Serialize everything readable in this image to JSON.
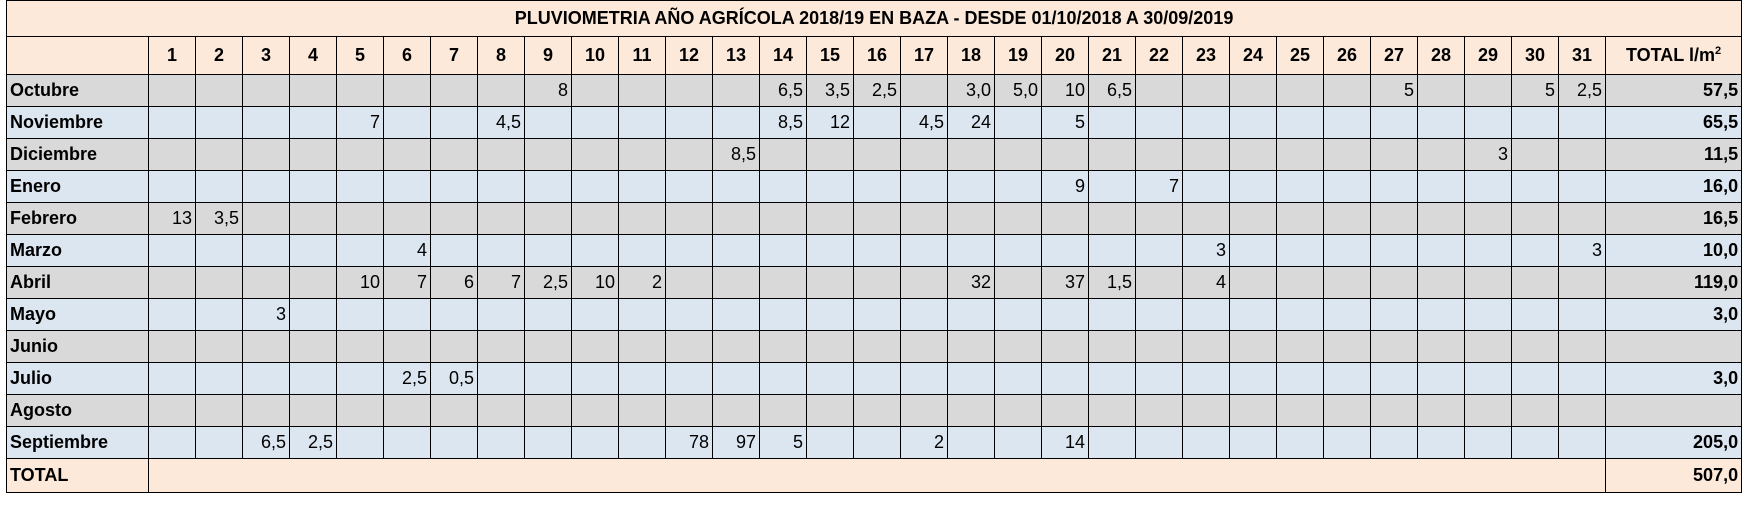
{
  "header": {
    "title": "PLUVIOMETRIA AÑO AGRÍCOLA  2018/19 EN BAZA - DESDE  01/10/2018  A 30/09/2019",
    "days": [
      1,
      2,
      3,
      4,
      5,
      6,
      7,
      8,
      9,
      10,
      11,
      12,
      13,
      14,
      15,
      16,
      17,
      18,
      19,
      20,
      21,
      22,
      23,
      24,
      25,
      26,
      27,
      28,
      29,
      30,
      31
    ],
    "total_label": "TOTAL l/m",
    "total_label_sup": "2"
  },
  "table": {
    "rows": [
      {
        "month": "Octubre",
        "values": [
          null,
          null,
          null,
          null,
          null,
          null,
          null,
          null,
          "8",
          null,
          null,
          null,
          null,
          "6,5",
          "3,5",
          "2,5",
          null,
          "3,0",
          "5,0",
          "10",
          "6,5",
          null,
          null,
          null,
          null,
          null,
          "5",
          null,
          null,
          "5",
          "2,5"
        ],
        "total": "57,5"
      },
      {
        "month": "Noviembre",
        "values": [
          null,
          null,
          null,
          null,
          "7",
          null,
          null,
          "4,5",
          null,
          null,
          null,
          null,
          null,
          "8,5",
          "12",
          null,
          "4,5",
          "24",
          null,
          "5",
          null,
          null,
          null,
          null,
          null,
          null,
          null,
          null,
          null,
          null,
          null
        ],
        "total": "65,5"
      },
      {
        "month": "Diciembre",
        "values": [
          null,
          null,
          null,
          null,
          null,
          null,
          null,
          null,
          null,
          null,
          null,
          null,
          "8,5",
          null,
          null,
          null,
          null,
          null,
          null,
          null,
          null,
          null,
          null,
          null,
          null,
          null,
          null,
          null,
          "3",
          null,
          null
        ],
        "total": "11,5"
      },
      {
        "month": "Enero",
        "values": [
          null,
          null,
          null,
          null,
          null,
          null,
          null,
          null,
          null,
          null,
          null,
          null,
          null,
          null,
          null,
          null,
          null,
          null,
          null,
          "9",
          null,
          "7",
          null,
          null,
          null,
          null,
          null,
          null,
          null,
          null,
          null
        ],
        "total": "16,0"
      },
      {
        "month": "Febrero",
        "values": [
          "13",
          "3,5",
          null,
          null,
          null,
          null,
          null,
          null,
          null,
          null,
          null,
          null,
          null,
          null,
          null,
          null,
          null,
          null,
          null,
          null,
          null,
          null,
          null,
          null,
          null,
          null,
          null,
          null,
          null,
          null,
          null
        ],
        "total": "16,5"
      },
      {
        "month": "Marzo",
        "values": [
          null,
          null,
          null,
          null,
          null,
          "4",
          null,
          null,
          null,
          null,
          null,
          null,
          null,
          null,
          null,
          null,
          null,
          null,
          null,
          null,
          null,
          null,
          "3",
          null,
          null,
          null,
          null,
          null,
          null,
          null,
          "3"
        ],
        "total": "10,0"
      },
      {
        "month": "Abril",
        "values": [
          null,
          null,
          null,
          null,
          "10",
          "7",
          "6",
          "7",
          "2,5",
          "10",
          "2",
          null,
          null,
          null,
          null,
          null,
          null,
          "32",
          null,
          "37",
          "1,5",
          null,
          "4",
          null,
          null,
          null,
          null,
          null,
          null,
          null,
          null
        ],
        "total": "119,0"
      },
      {
        "month": "Mayo",
        "values": [
          null,
          null,
          "3",
          null,
          null,
          null,
          null,
          null,
          null,
          null,
          null,
          null,
          null,
          null,
          null,
          null,
          null,
          null,
          null,
          null,
          null,
          null,
          null,
          null,
          null,
          null,
          null,
          null,
          null,
          null,
          null
        ],
        "total": "3,0"
      },
      {
        "month": "Junio",
        "values": [
          null,
          null,
          null,
          null,
          null,
          null,
          null,
          null,
          null,
          null,
          null,
          null,
          null,
          null,
          null,
          null,
          null,
          null,
          null,
          null,
          null,
          null,
          null,
          null,
          null,
          null,
          null,
          null,
          null,
          null,
          null
        ],
        "total": null
      },
      {
        "month": "Julio",
        "values": [
          null,
          null,
          null,
          null,
          null,
          "2,5",
          "0,5",
          null,
          null,
          null,
          null,
          null,
          null,
          null,
          null,
          null,
          null,
          null,
          null,
          null,
          null,
          null,
          null,
          null,
          null,
          null,
          null,
          null,
          null,
          null,
          null
        ],
        "total": "3,0"
      },
      {
        "month": "Agosto",
        "values": [
          null,
          null,
          null,
          null,
          null,
          null,
          null,
          null,
          null,
          null,
          null,
          null,
          null,
          null,
          null,
          null,
          null,
          null,
          null,
          null,
          null,
          null,
          null,
          null,
          null,
          null,
          null,
          null,
          null,
          null,
          null
        ],
        "total": null
      },
      {
        "month": "Septiembre",
        "values": [
          null,
          null,
          "6,5",
          "2,5",
          null,
          null,
          null,
          null,
          null,
          null,
          null,
          "78",
          "97",
          "5",
          null,
          null,
          "2",
          null,
          null,
          "14",
          null,
          null,
          null,
          null,
          null,
          null,
          null,
          null,
          null,
          null,
          null
        ],
        "total": "205,0"
      }
    ],
    "footer": {
      "label": "TOTAL",
      "total": "507,0"
    }
  }
}
